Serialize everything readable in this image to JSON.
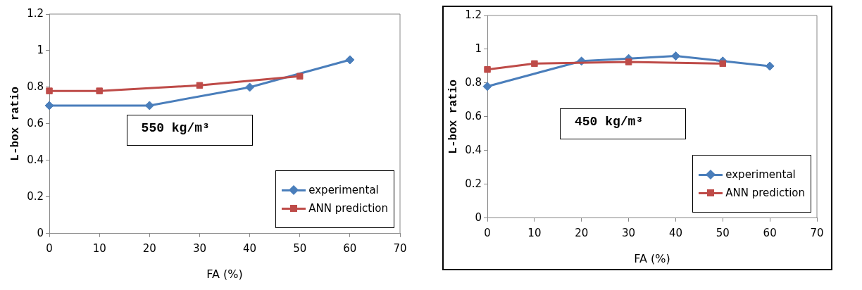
{
  "chart_data": [
    {
      "type": "line",
      "xlabel": "FA (%)",
      "ylabel": "L-box ratio",
      "xlim": [
        0,
        70
      ],
      "xticks": [
        0,
        10,
        20,
        30,
        40,
        50,
        60,
        70
      ],
      "ylim": [
        0,
        1.2
      ],
      "yticks": [
        0,
        0.2,
        0.4,
        0.6,
        0.8,
        1,
        1.2
      ],
      "grid": false,
      "legend": "bottom right",
      "line_style": "solid",
      "annotations": [
        "550 kg/m³"
      ],
      "series": [
        {
          "name": "experimental",
          "color": "#4a7ebb",
          "marker": "diamond",
          "x": [
            0,
            20,
            40,
            60
          ],
          "values": [
            0.7,
            0.7,
            0.8,
            0.95
          ]
        },
        {
          "name": "ANN prediction",
          "color": "#be4b48",
          "marker": "square",
          "x": [
            0,
            10,
            30,
            50
          ],
          "values": [
            0.78,
            0.78,
            0.81,
            0.86
          ]
        }
      ]
    },
    {
      "type": "line",
      "xlabel": "FA (%)",
      "ylabel": "L-box ratio",
      "xlim": [
        0,
        70
      ],
      "xticks": [
        0,
        10,
        20,
        30,
        40,
        50,
        60,
        70
      ],
      "ylim": [
        0,
        1.2
      ],
      "yticks": [
        0,
        0.2,
        0.4,
        0.6,
        0.8,
        1,
        1.2
      ],
      "grid": false,
      "legend": "bottom right",
      "line_style": "solid",
      "annotations": [
        "450 kg/m³"
      ],
      "series": [
        {
          "name": "experimental",
          "color": "#4a7ebb",
          "marker": "diamond",
          "x": [
            0,
            20,
            30,
            40,
            50,
            60
          ],
          "values": [
            0.78,
            0.93,
            0.945,
            0.96,
            0.93,
            0.9
          ]
        },
        {
          "name": "ANN prediction",
          "color": "#be4b48",
          "marker": "square",
          "x": [
            0,
            10,
            30,
            50
          ],
          "values": [
            0.88,
            0.915,
            0.925,
            0.915
          ]
        }
      ]
    }
  ]
}
